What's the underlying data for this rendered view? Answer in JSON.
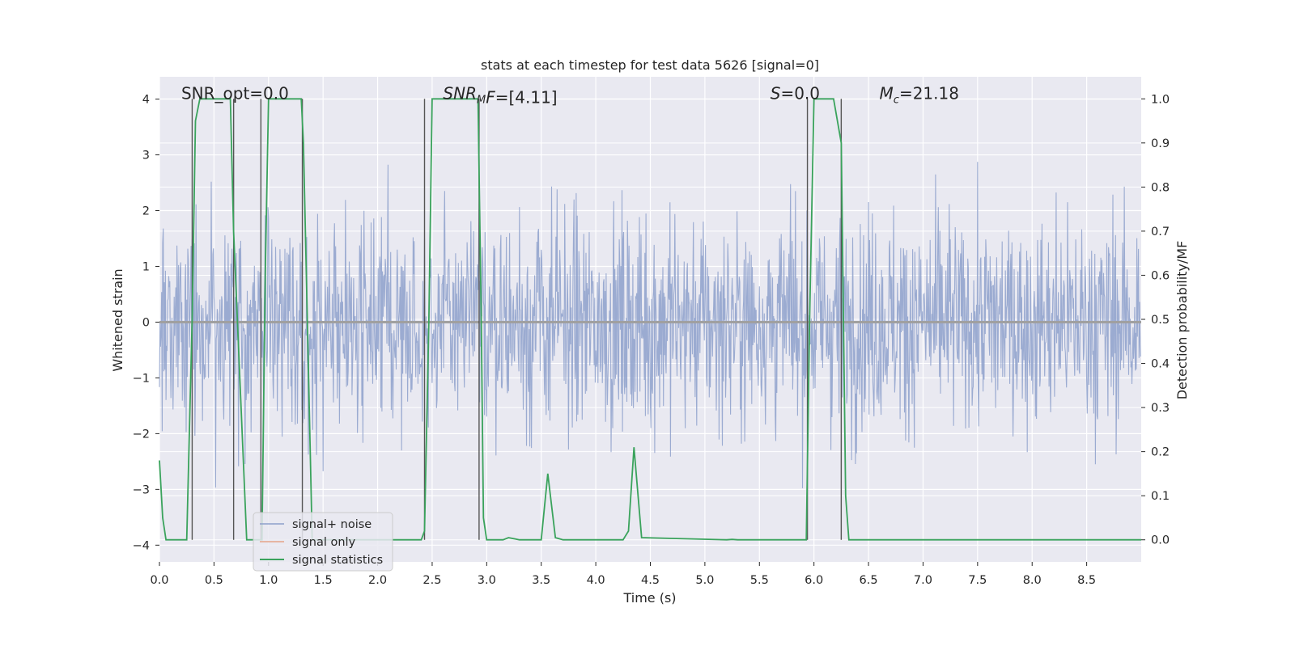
{
  "chart_data": {
    "type": "line",
    "title": "stats at each timestep for test data 5626 [signal=0]",
    "xlabel": "Time (s)",
    "ylabel_left": "Whitened strain",
    "ylabel_right": "Detection probability/MF",
    "xlim": [
      0.0,
      9.0
    ],
    "ylim_left": [
      -4.3,
      4.4
    ],
    "ylim_right": [
      -0.05,
      1.05
    ],
    "x_ticks": [
      0.0,
      0.5,
      1.0,
      1.5,
      2.0,
      2.5,
      3.0,
      3.5,
      4.0,
      4.5,
      5.0,
      5.5,
      6.0,
      6.5,
      7.0,
      7.5,
      8.0,
      8.5
    ],
    "x_tick_labels": [
      "0.0",
      "0.5",
      "1.0",
      "1.5",
      "2.0",
      "2.5",
      "3.0",
      "3.5",
      "4.0",
      "4.5",
      "5.0",
      "5.5",
      "6.0",
      "6.5",
      "7.0",
      "7.5",
      "8.0",
      "8.5"
    ],
    "y_left_ticks": [
      4,
      3,
      2,
      1,
      0,
      -1,
      -2,
      -3,
      -4
    ],
    "y_left_tick_labels": [
      "4",
      "3",
      "2",
      "1",
      "0",
      "−1",
      "−2",
      "−3",
      "−4"
    ],
    "y_right_ticks": [
      1.0,
      0.9,
      0.8,
      0.7,
      0.6,
      0.5,
      0.4,
      0.3,
      0.2,
      0.1,
      0.0
    ],
    "y_right_tick_labels": [
      "1.0",
      "0.9",
      "0.8",
      "0.7",
      "0.6",
      "0.5",
      "0.4",
      "0.3",
      "0.2",
      "0.1",
      "0.0"
    ],
    "grid": true,
    "annotations": [
      {
        "text": "SNR_opt=0.0",
        "x": 0.2,
        "y": 4.1,
        "italic": false
      },
      {
        "text": "SNR",
        "sub": "M",
        "rest": "F=[4.11]",
        "x": 2.6,
        "y": 4.1,
        "italic": true
      },
      {
        "text": "S",
        "sub": "",
        "rest": "=0.0",
        "x": 5.6,
        "y": 4.1,
        "italic": true
      },
      {
        "text": "M",
        "sub": "c",
        "rest": "=21.18",
        "x": 6.6,
        "y": 4.1,
        "italic": true
      }
    ],
    "legend": {
      "placement": "lower-left",
      "entries": [
        "signal+ noise",
        "signal only",
        "signal statistics"
      ]
    },
    "series": [
      {
        "name": "signal+ noise",
        "color": "#8da0cb",
        "description_kind": "noise",
        "amplitude_envelope": [
          -3.5,
          4.0
        ],
        "x_range": [
          0.0,
          9.0
        ]
      },
      {
        "name": "signal only",
        "color": "#e5a487",
        "values": [
          0,
          0
        ]
      },
      {
        "name": "signal statistics",
        "color": "#3aa35c",
        "axis": "right",
        "x": [
          0.0,
          0.03,
          0.06,
          0.25,
          0.3,
          0.33,
          0.37,
          0.4,
          0.65,
          0.68,
          0.8,
          0.82,
          0.94,
          0.97,
          1.0,
          1.3,
          1.32,
          1.4,
          2.4,
          2.43,
          2.47,
          2.5,
          2.92,
          2.95,
          2.97,
          3.0,
          3.15,
          3.2,
          3.3,
          3.5,
          3.56,
          3.63,
          3.7,
          4.25,
          4.3,
          4.35,
          4.42,
          5.2,
          5.25,
          5.3,
          5.93,
          5.96,
          6.0,
          6.18,
          6.25,
          6.29,
          6.32,
          9.0
        ],
        "values": [
          0.18,
          0.05,
          0.0,
          0.0,
          0.5,
          0.95,
          1.0,
          1.0,
          1.0,
          0.7,
          0.0,
          0.0,
          0.0,
          0.6,
          1.0,
          1.0,
          0.9,
          0.0,
          0.0,
          0.02,
          0.5,
          1.0,
          1.0,
          0.5,
          0.05,
          0.0,
          0.0,
          0.005,
          0.0,
          0.0,
          0.15,
          0.005,
          0.0,
          0.0,
          0.02,
          0.21,
          0.005,
          0.0,
          0.001,
          0.0,
          0.0,
          0.5,
          1.0,
          1.0,
          0.9,
          0.1,
          0.0,
          0.0
        ]
      }
    ],
    "vertical_markers": [
      0.3,
      0.68,
      0.93,
      1.31,
      2.43,
      2.93,
      5.94,
      6.25
    ]
  }
}
